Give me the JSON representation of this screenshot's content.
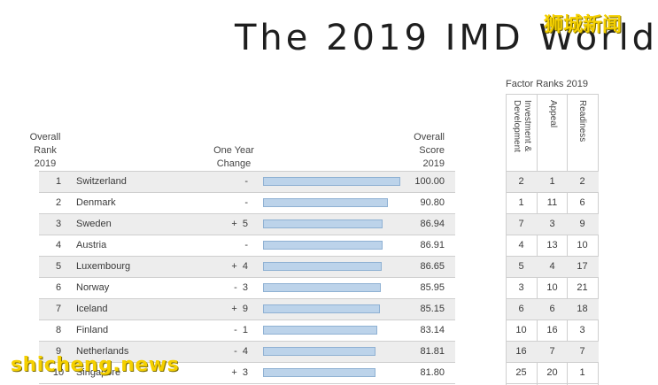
{
  "title": "The 2019 IMD World",
  "watermark_top": "狮城新闻",
  "watermark_bottom": "shicheng.news",
  "headers": {
    "rank": [
      "Overall",
      "Rank",
      "2019"
    ],
    "change": [
      "One Year",
      "Change"
    ],
    "score": [
      "Overall",
      "Score",
      "2019"
    ],
    "factor_title": "Factor Ranks 2019",
    "factors": [
      "Investment & Development",
      "Appeal",
      "Readiness"
    ]
  },
  "rows": [
    {
      "rank": "1",
      "country": "Switzerland",
      "change": "-",
      "score": "100.00",
      "score_value": 100.0,
      "investment": "2",
      "appeal": "1",
      "readiness": "2"
    },
    {
      "rank": "2",
      "country": "Denmark",
      "change": "-",
      "score": "90.80",
      "score_value": 90.8,
      "investment": "1",
      "appeal": "11",
      "readiness": "6"
    },
    {
      "rank": "3",
      "country": "Sweden",
      "change": "+  5",
      "score": "86.94",
      "score_value": 86.94,
      "investment": "7",
      "appeal": "3",
      "readiness": "9"
    },
    {
      "rank": "4",
      "country": "Austria",
      "change": "-",
      "score": "86.91",
      "score_value": 86.91,
      "investment": "4",
      "appeal": "13",
      "readiness": "10"
    },
    {
      "rank": "5",
      "country": "Luxembourg",
      "change": "+  4",
      "score": "86.65",
      "score_value": 86.65,
      "investment": "5",
      "appeal": "4",
      "readiness": "17"
    },
    {
      "rank": "6",
      "country": "Norway",
      "change": "-  3",
      "score": "85.95",
      "score_value": 85.95,
      "investment": "3",
      "appeal": "10",
      "readiness": "21"
    },
    {
      "rank": "7",
      "country": "Iceland",
      "change": "+  9",
      "score": "85.15",
      "score_value": 85.15,
      "investment": "6",
      "appeal": "6",
      "readiness": "18"
    },
    {
      "rank": "8",
      "country": "Finland",
      "change": "-  1",
      "score": "83.14",
      "score_value": 83.14,
      "investment": "10",
      "appeal": "16",
      "readiness": "3"
    },
    {
      "rank": "9",
      "country": "Netherlands",
      "change": "-  4",
      "score": "81.81",
      "score_value": 81.81,
      "investment": "16",
      "appeal": "7",
      "readiness": "7"
    },
    {
      "rank": "10",
      "country": "Singapore",
      "change": "+  3",
      "score": "81.80",
      "score_value": 81.8,
      "investment": "25",
      "appeal": "20",
      "readiness": "1"
    }
  ],
  "colors": {
    "bar_fill": "#bcd3ea",
    "bar_border": "#8fb1d3",
    "shaded_row": "#ededed",
    "watermark": "#f5d000"
  }
}
